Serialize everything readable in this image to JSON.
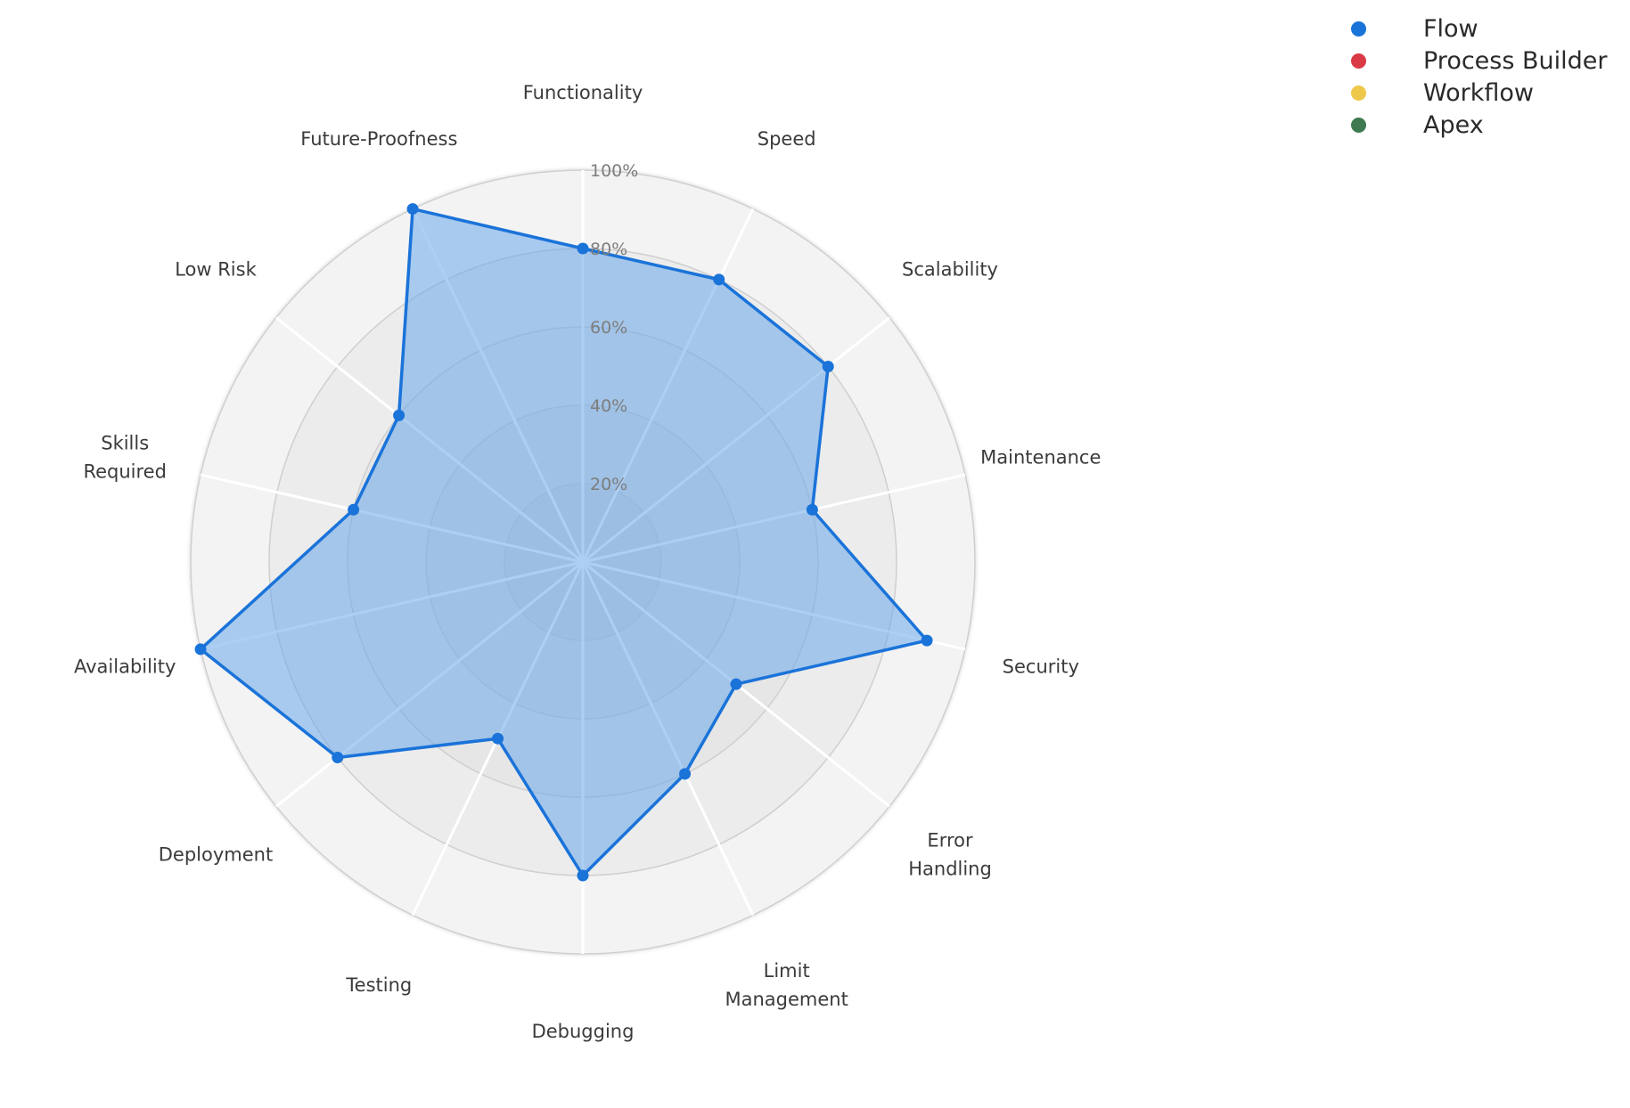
{
  "chart_data": {
    "type": "radar",
    "title": "",
    "categories": [
      "Functionality",
      "Speed",
      "Scalability",
      "Maintenance",
      "Security",
      "Error\nHandling",
      "Limit\nManagement",
      "Debugging",
      "Testing",
      "Deployment",
      "Availability",
      "Skills\nRequired",
      "Low Risk",
      "Future-Proofness"
    ],
    "radial_axis": {
      "range": [
        0,
        100
      ],
      "ticks": [
        20,
        40,
        60,
        80,
        100
      ],
      "tick_labels": [
        "20%",
        "40%",
        "60%",
        "80%",
        "100%"
      ]
    },
    "series": [
      {
        "name": "Flow",
        "color": "#1a73d9",
        "fill": "#6aa8ea",
        "values": [
          80,
          80,
          80,
          60,
          90,
          50,
          60,
          80,
          50,
          80,
          100,
          60,
          60,
          100
        ]
      }
    ],
    "legend": {
      "placement": "top-right",
      "items": [
        {
          "label": "Flow",
          "color": "#1a73d9"
        },
        {
          "label": "Process Builder",
          "color": "#d93a45"
        },
        {
          "label": "Workflow",
          "color": "#eec84a"
        },
        {
          "label": "Apex",
          "color": "#3d7a4f"
        }
      ]
    },
    "grid": true
  }
}
